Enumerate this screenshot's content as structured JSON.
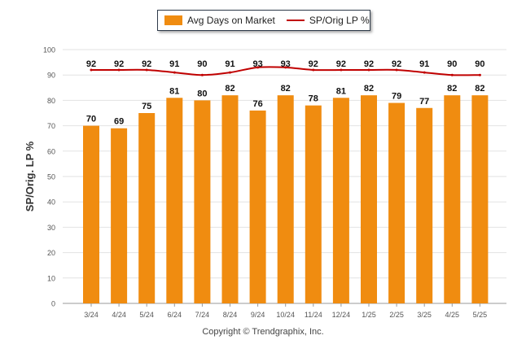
{
  "chart_data": {
    "type": "bar",
    "categories": [
      "3/24",
      "4/24",
      "5/24",
      "6/24",
      "7/24",
      "8/24",
      "9/24",
      "10/24",
      "11/24",
      "12/24",
      "1/25",
      "2/25",
      "3/25",
      "4/25",
      "5/25"
    ],
    "series": [
      {
        "name": "Avg Days on Market",
        "type": "bar",
        "color": "#f08c10",
        "values": [
          70,
          69,
          75,
          81,
          80,
          82,
          76,
          82,
          78,
          81,
          82,
          79,
          77,
          82,
          82
        ]
      },
      {
        "name": "SP/Orig LP %",
        "type": "line",
        "color": "#c00000",
        "values": [
          92,
          92,
          92,
          91,
          90,
          91,
          93,
          93,
          92,
          92,
          92,
          92,
          91,
          90,
          90
        ]
      }
    ],
    "ylabel": "SP/Orig. LP %",
    "ylim": [
      0,
      100
    ],
    "yticks": [
      0,
      10,
      20,
      30,
      40,
      50,
      60,
      70,
      80,
      90,
      100
    ],
    "grid": true,
    "legend_position": "top"
  },
  "footer": "Copyright © Trendgraphix, Inc."
}
